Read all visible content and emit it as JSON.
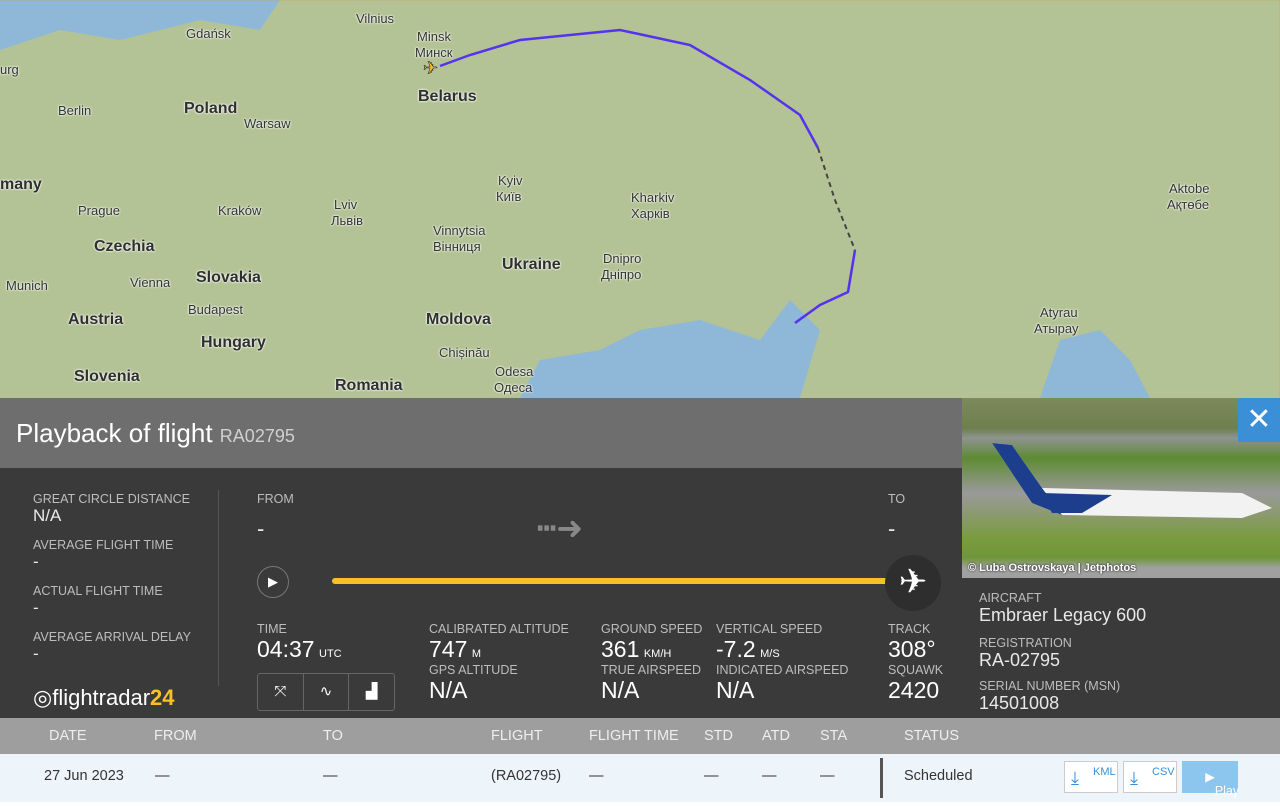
{
  "map": {
    "labels": [
      "Vilnius",
      "Gdańsk",
      "Minsk",
      "Минск",
      "Belarus",
      "urg",
      "Berlin",
      "Poland",
      "Warsaw",
      "many",
      "Prague",
      "Kraków",
      "Lviv",
      "Львів",
      "Kyiv",
      "Київ",
      "Kharkiv",
      "Харків",
      "Czechia",
      "Vinnytsia",
      "Вінниця",
      "Ukraine",
      "Dnipro",
      "Дніпро",
      "Slovakia",
      "Munich",
      "Vienna",
      "Budapest",
      "Austria",
      "Hungary",
      "Moldova",
      "Chișinău",
      "Slovenia",
      "Romania",
      "Odesa",
      "Одеса",
      "Aktobe",
      "Ақтөбе",
      "Atyrau",
      "Атырау"
    ],
    "track_color": "#5533ee"
  },
  "panel": {
    "title": "Playback of flight",
    "flight": "RA02795",
    "stats": [
      {
        "label": "GREAT CIRCLE DISTANCE",
        "value": "N/A"
      },
      {
        "label": "AVERAGE FLIGHT TIME",
        "value": "-"
      },
      {
        "label": "ACTUAL FLIGHT TIME",
        "value": "-"
      },
      {
        "label": "AVERAGE ARRIVAL DELAY",
        "value": "-"
      }
    ],
    "from_label": "FROM",
    "from_value": "-",
    "to_label": "TO",
    "to_value": "-",
    "progress": 1.0,
    "time_label": "TIME",
    "time_value": "04:37",
    "time_unit": "UTC",
    "cal_alt_label": "CALIBRATED ALTITUDE",
    "cal_alt_value": "747",
    "cal_alt_unit": "M",
    "gps_alt_label": "GPS ALTITUDE",
    "gps_alt_value": "N/A",
    "gs_label": "GROUND SPEED",
    "gs_value": "361",
    "gs_unit": "KM/H",
    "tas_label": "TRUE AIRSPEED",
    "tas_value": "N/A",
    "vs_label": "VERTICAL SPEED",
    "vs_value": "-7.2",
    "vs_unit": "M/S",
    "ias_label": "INDICATED AIRSPEED",
    "ias_value": "N/A",
    "track_label": "TRACK",
    "track_value": "308°",
    "squawk_label": "SQUAWK",
    "squawk_value": "2420",
    "logo_a": "flightradar",
    "logo_b": "24"
  },
  "aircraft": {
    "photo_credit": "© Luba Ostrovskaya | Jetphotos",
    "aircraft_label": "AIRCRAFT",
    "aircraft_value": "Embraer Legacy 600",
    "reg_label": "REGISTRATION",
    "reg_value": "RA-02795",
    "msn_label": "SERIAL NUMBER (MSN)",
    "msn_value": "14501008"
  },
  "table": {
    "headers": [
      "DATE",
      "FROM",
      "TO",
      "FLIGHT",
      "FLIGHT TIME",
      "STD",
      "ATD",
      "STA",
      "STATUS"
    ],
    "row": {
      "date": "27 Jun 2023",
      "from": "—",
      "to": "—",
      "flight": "(RA02795)",
      "flight_time": "—",
      "std": "—",
      "atd": "—",
      "sta": "—",
      "status": "Scheduled"
    },
    "kml": "KML",
    "csv": "CSV",
    "play": "Play"
  }
}
